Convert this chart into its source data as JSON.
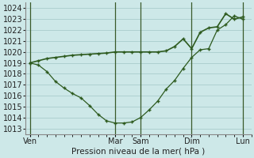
{
  "xlabel": "Pression niveau de la mer( hPa )",
  "bg_color": "#cde8e8",
  "grid_color": "#a8cccc",
  "line_color1": "#2d5a1e",
  "line_color2": "#2d5a1e",
  "ylim": [
    1012.5,
    1024.5
  ],
  "yticks": [
    1013,
    1014,
    1015,
    1016,
    1017,
    1018,
    1019,
    1020,
    1021,
    1022,
    1023,
    1024
  ],
  "day_labels": [
    "Ven",
    "Mar",
    "Sam",
    "Dim",
    "Lun"
  ],
  "day_positions": [
    0,
    10,
    13,
    19,
    25
  ],
  "xlim": [
    -0.5,
    26
  ],
  "series1_x": [
    0,
    1,
    2,
    3,
    4,
    5,
    6,
    7,
    8,
    9,
    10,
    11,
    12,
    13,
    14,
    15,
    16,
    17,
    18,
    19,
    20,
    21,
    22,
    23,
    24,
    25
  ],
  "series1_y": [
    1019.0,
    1018.8,
    1018.2,
    1017.3,
    1016.7,
    1016.2,
    1015.8,
    1015.1,
    1014.3,
    1013.7,
    1013.5,
    1013.5,
    1013.6,
    1014.0,
    1014.7,
    1015.5,
    1016.6,
    1017.4,
    1018.5,
    1019.5,
    1020.2,
    1020.3,
    1022.0,
    1022.5,
    1023.3,
    1023.0
  ],
  "series2_x": [
    0,
    1,
    2,
    3,
    4,
    5,
    6,
    7,
    8,
    9,
    10,
    11,
    12,
    13,
    14,
    15,
    16,
    17,
    18,
    19,
    20,
    21,
    22,
    23,
    24,
    25
  ],
  "series2_y": [
    1019.0,
    1019.2,
    1019.4,
    1019.5,
    1019.6,
    1019.7,
    1019.75,
    1019.8,
    1019.85,
    1019.9,
    1020.0,
    1020.0,
    1020.0,
    1020.0,
    1020.0,
    1020.0,
    1020.1,
    1020.5,
    1021.2,
    1020.3,
    1021.8,
    1022.2,
    1022.3,
    1023.5,
    1023.0,
    1023.2
  ]
}
